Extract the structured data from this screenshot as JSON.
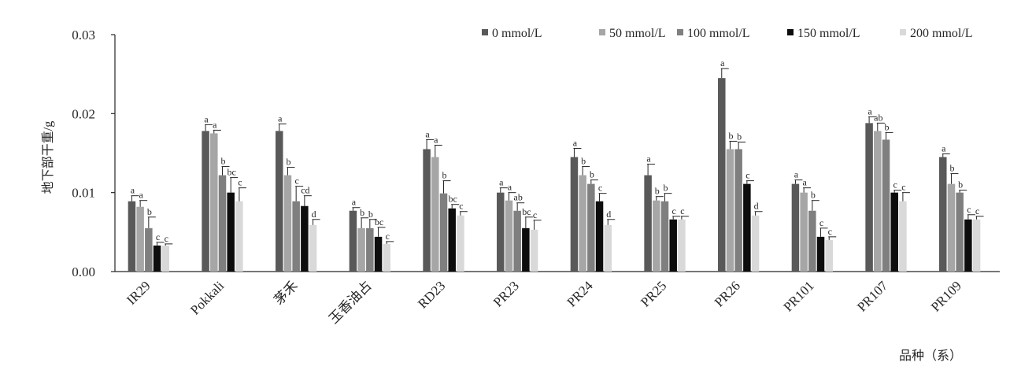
{
  "chart_data": {
    "type": "bar",
    "xlabel": "品种（系）",
    "ylabel": "地下部干重/g",
    "ylim": [
      0,
      0.03
    ],
    "yticks": [
      "0.00",
      "0.01",
      "0.02",
      "0.03"
    ],
    "legend_position": "top-right",
    "grid": false,
    "error_bars": true,
    "categories": [
      "IR29",
      "Pokkali",
      "茅禾",
      "玉香油占",
      "RD23",
      "PR23",
      "PR24",
      "PR25",
      "PR26",
      "PR101",
      "PR107",
      "PR109"
    ],
    "series": [
      {
        "name": "0 mmol/L",
        "color": "#595959",
        "values": [
          0.0089,
          0.0178,
          0.0178,
          0.0077,
          0.0155,
          0.01,
          0.0145,
          0.0122,
          0.0245,
          0.0111,
          0.0188,
          0.0145
        ],
        "errors": [
          0.0007,
          0.0008,
          0.0009,
          0.0004,
          0.0012,
          0.0006,
          0.0011,
          0.0014,
          0.0012,
          0.0005,
          0.0008,
          0.0004
        ],
        "labels": [
          "a",
          "a",
          "a",
          "a",
          "a",
          "a",
          "a",
          "a",
          "a",
          "a",
          "a",
          "a"
        ]
      },
      {
        "name": "50 mmol/L",
        "color": "#a6a6a6",
        "values": [
          0.0082,
          0.0175,
          0.0122,
          0.0055,
          0.0145,
          0.009,
          0.0122,
          0.009,
          0.0155,
          0.01,
          0.0178,
          0.0111
        ],
        "errors": [
          0.0008,
          0.0004,
          0.001,
          0.0013,
          0.0015,
          0.001,
          0.0011,
          0.0005,
          0.001,
          0.0006,
          0.001,
          0.0013
        ],
        "labels": [
          "a",
          "a",
          "b",
          "b",
          "a",
          "a",
          "b",
          "b",
          "b",
          "a",
          "ab",
          "b"
        ]
      },
      {
        "name": "100 mmol/L",
        "color": "#7f7f7f",
        "values": [
          0.0055,
          0.0122,
          0.0089,
          0.0055,
          0.0099,
          0.0077,
          0.0111,
          0.0089,
          0.0155,
          0.0077,
          0.0167,
          0.01
        ],
        "errors": [
          0.0014,
          0.0011,
          0.0019,
          0.0011,
          0.0016,
          0.001,
          0.0005,
          0.001,
          0.0009,
          0.0013,
          0.0009,
          0.0003
        ],
        "labels": [
          "b",
          "b",
          "c",
          "b",
          "b",
          "ab",
          "b",
          "b",
          "b",
          "b",
          "b",
          "b"
        ]
      },
      {
        "name": "150 mmol/L",
        "color": "#0d0d0d",
        "values": [
          0.0033,
          0.01,
          0.0083,
          0.0044,
          0.008,
          0.0055,
          0.0089,
          0.0066,
          0.0111,
          0.0044,
          0.01,
          0.0066
        ],
        "errors": [
          0.0004,
          0.0019,
          0.0013,
          0.0012,
          0.0005,
          0.0014,
          0.001,
          0.0004,
          0.0004,
          0.0011,
          0.0003,
          0.0006
        ],
        "labels": [
          "c",
          "bc",
          "cd",
          "bc",
          "bc",
          "bc",
          "c",
          "c",
          "c",
          "c",
          "c",
          "c"
        ]
      },
      {
        "name": "200 mmol/L",
        "color": "#d9d9d9",
        "values": [
          0.0033,
          0.0089,
          0.0059,
          0.0035,
          0.0071,
          0.0053,
          0.0059,
          0.0066,
          0.0071,
          0.004,
          0.0089,
          0.0066
        ],
        "errors": [
          0.0002,
          0.0017,
          0.0007,
          0.0003,
          0.0005,
          0.0012,
          0.0007,
          0.0004,
          0.0005,
          0.0004,
          0.0011,
          0.0004
        ],
        "labels": [
          "c",
          "c",
          "d",
          "c",
          "c",
          "c",
          "d",
          "c",
          "d",
          "c",
          "c",
          "c"
        ]
      }
    ]
  }
}
